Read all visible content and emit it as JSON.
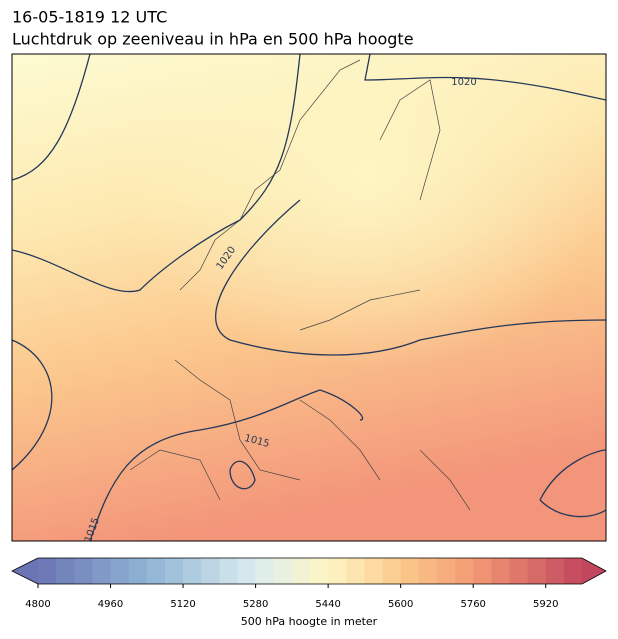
{
  "header": {
    "title": "16-05-1819 12 UTC",
    "subtitle": "Luchtdruk op zeeniveau in hPa en 500 hPa hoogte"
  },
  "map": {
    "contour_labels": [
      "1020",
      "1020",
      "1015",
      "1015"
    ]
  },
  "colorbar": {
    "lim": [
      4800,
      6000
    ],
    "step": 40,
    "ticks": [
      4800,
      4960,
      5120,
      5280,
      5440,
      5600,
      5760,
      5920
    ],
    "label": "500 hPa hoogte in meter"
  }
}
